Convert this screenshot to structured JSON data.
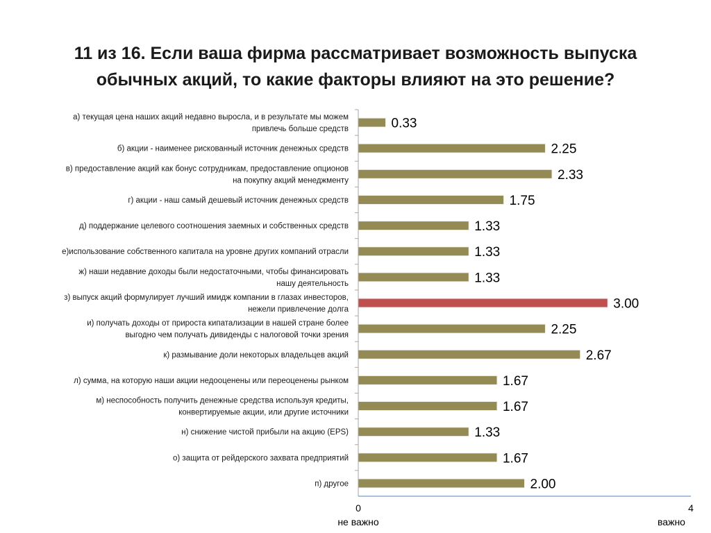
{
  "title_line1": "11 из 16. Если ваша фирма рассматривает возможность выпуска",
  "title_line2": "обычных акций, то какие факторы влияют на это решение?",
  "colors": {
    "bar": "#948A54",
    "highlight": "#C0504D",
    "axis": "#A6A6A6",
    "axis_x": "#4F81BD"
  },
  "chart_data": {
    "type": "bar",
    "orientation": "horizontal",
    "title": "11 из 16. Если ваша фирма рассматривает возможность выпуска обычных акций, то какие факторы влияют на это решение?",
    "xlim": [
      0,
      4
    ],
    "x_ticks": [
      {
        "value": 0,
        "label": "0",
        "sublabel": "не важно"
      },
      {
        "value": 4,
        "label": "4",
        "sublabel": "важно"
      }
    ],
    "highlight_index": 7,
    "categories": [
      [
        "а) текущая цена наших акций недавно выросла, и в результате мы можем",
        "привлечь больше средств"
      ],
      [
        "б) акции - наименее рискованный источник денежных средств"
      ],
      [
        "в) предоставление акций как бонус сотрудникам, предоставление опционов",
        "на покупку акций менеджменту"
      ],
      [
        "г) акции - наш самый дешевый источник денежных средств"
      ],
      [
        "д) поддержание целевого соотношения заемных и собственных средств"
      ],
      [
        "е)использование собственного капитала на уровне других компаний отрасли"
      ],
      [
        "ж) наши недавние доходы были недостаточными, чтобы финансировать",
        "нашу деятельность"
      ],
      [
        "з) выпуск акций формулирует лучший имидж компании в глазах инвесторов,",
        "нежели привлечение долга"
      ],
      [
        "и) получать доходы от прироста кипатализации в нашей стране более",
        "выгодно чем получать дивиденды с налоговой точки зрения"
      ],
      [
        "к) размывание доли некоторых владельцев акций"
      ],
      [
        "л) сумма, на которую наши акции недооценены или переоценены рынком"
      ],
      [
        "м) неспособность получить денежные средства используя кредиты,",
        "конвертируемые акции, или другие источники"
      ],
      [
        "н) снижение чистой прибыли на акцию (EPS)"
      ],
      [
        "о) защита от рейдерского захвата предприятий"
      ],
      [
        "п) другое"
      ]
    ],
    "values": [
      0.33,
      2.25,
      2.33,
      1.75,
      1.33,
      1.33,
      1.33,
      3.0,
      2.25,
      2.67,
      1.67,
      1.67,
      1.33,
      1.67,
      2.0
    ],
    "value_labels": [
      "0.33",
      "2.25",
      "2.33",
      "1.75",
      "1.33",
      "1.33",
      "1.33",
      "3.00",
      "2.25",
      "2.67",
      "1.67",
      "1.67",
      "1.33",
      "1.67",
      "2.00"
    ]
  }
}
